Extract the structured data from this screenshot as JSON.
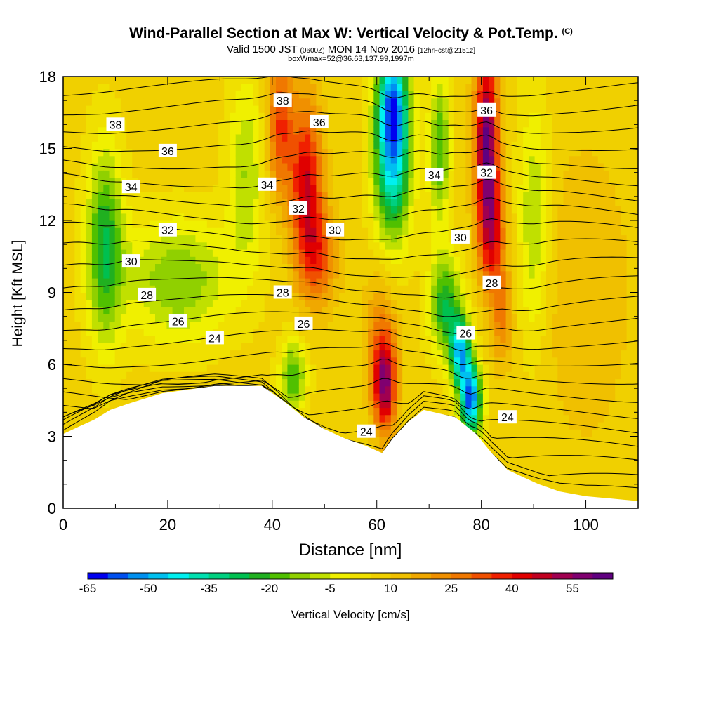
{
  "header": {
    "title": "Wind-Parallel Section at Max W: Vertical Velocity & Pot.Temp.",
    "copyright": "(C)",
    "valid_prefix": "Valid 1500 JST",
    "valid_utc": "(0600Z)",
    "valid_date": "MON 14 Nov 2016",
    "forecast": "[12hrFcst@2151z]",
    "box_info": "boxWmax=52@36.63,137.99,1997m"
  },
  "chart_data": {
    "type": "heatmap",
    "title": "Wind-Parallel Section at Max W: Vertical Velocity & Pot.Temp.",
    "xlabel": "Distance [nm]",
    "ylabel": "Height [Kft MSL]",
    "xlim": [
      0,
      110
    ],
    "ylim": [
      0,
      18
    ],
    "x_ticks": [
      "0",
      "20",
      "40",
      "60",
      "80",
      "100"
    ],
    "y_ticks": [
      "0",
      "3",
      "6",
      "9",
      "12",
      "15",
      "18"
    ],
    "colorbar": {
      "label": "Vertical Velocity [cm/s]",
      "tick_labels": [
        "-65",
        "-50",
        "-35",
        "-20",
        "-5",
        "10",
        "25",
        "40",
        "55"
      ],
      "colors": [
        "#0000f0",
        "#0050f0",
        "#0090f0",
        "#00c0f0",
        "#00f0f0",
        "#00e0b0",
        "#00d080",
        "#00c050",
        "#20b020",
        "#50c000",
        "#90d000",
        "#c0e000",
        "#f0f000",
        "#f0e000",
        "#f0d000",
        "#f0c000",
        "#f0a800",
        "#f09000",
        "#f07800",
        "#f05000",
        "#f02000",
        "#e00000",
        "#c00020",
        "#a00050",
        "#800070",
        "#600080"
      ],
      "min": -65,
      "step": 5
    },
    "terrain_kft": [
      [
        0,
        3.1
      ],
      [
        3,
        3.4
      ],
      [
        6,
        3.7
      ],
      [
        9,
        4.1
      ],
      [
        13,
        4.4
      ],
      [
        19,
        4.8
      ],
      [
        29,
        5.1
      ],
      [
        38,
        5.1
      ],
      [
        42,
        4.5
      ],
      [
        46,
        3.8
      ],
      [
        50,
        3.3
      ],
      [
        54,
        2.9
      ],
      [
        58,
        2.6
      ],
      [
        61,
        2.3
      ],
      [
        63,
        2.9
      ],
      [
        66,
        3.6
      ],
      [
        69,
        4.1
      ],
      [
        75,
        3.8
      ],
      [
        79,
        3.1
      ],
      [
        82,
        2.3
      ],
      [
        85,
        1.6
      ],
      [
        88,
        1.3
      ],
      [
        91,
        1.0
      ],
      [
        95,
        0.7
      ],
      [
        100,
        0.5
      ],
      [
        105,
        0.4
      ],
      [
        110,
        0.3
      ]
    ],
    "vertical_velocity_features_cm_s": [
      {
        "x": 61.5,
        "y": 5.2,
        "value": 55,
        "sx": 2.2,
        "sy": 2.0
      },
      {
        "x": 60.5,
        "y": 7.5,
        "value": 20,
        "sx": 3.0,
        "sy": 2.5
      },
      {
        "x": 46.5,
        "y": 13.5,
        "value": 45,
        "sx": 3.0,
        "sy": 3.5
      },
      {
        "x": 41.5,
        "y": 16.0,
        "value": 35,
        "sx": 2.5,
        "sy": 3.0
      },
      {
        "x": 49.0,
        "y": 10.5,
        "value": 30,
        "sx": 3.5,
        "sy": 2.0
      },
      {
        "x": 81.0,
        "y": 15.5,
        "value": 60,
        "sx": 2.2,
        "sy": 3.5
      },
      {
        "x": 82.0,
        "y": 11.5,
        "value": 40,
        "sx": 2.5,
        "sy": 2.5
      },
      {
        "x": 84.0,
        "y": 8.0,
        "value": 25,
        "sx": 2.0,
        "sy": 2.0
      },
      {
        "x": 63.0,
        "y": 17.0,
        "value": -45,
        "sx": 3.0,
        "sy": 2.5
      },
      {
        "x": 63.0,
        "y": 14.0,
        "value": -35,
        "sx": 3.5,
        "sy": 3.0
      },
      {
        "x": 78.0,
        "y": 4.5,
        "value": -55,
        "sx": 2.0,
        "sy": 1.5
      },
      {
        "x": 76.0,
        "y": 6.5,
        "value": -45,
        "sx": 2.0,
        "sy": 1.5
      },
      {
        "x": 73.0,
        "y": 8.5,
        "value": -25,
        "sx": 3.0,
        "sy": 2.0
      },
      {
        "x": 8.0,
        "y": 11.0,
        "value": -25,
        "sx": 3.5,
        "sy": 4.0
      },
      {
        "x": 22.0,
        "y": 9.5,
        "value": -15,
        "sx": 10.0,
        "sy": 2.5
      },
      {
        "x": 35.0,
        "y": 14.0,
        "value": -10,
        "sx": 3.5,
        "sy": 4.0
      },
      {
        "x": 44.0,
        "y": 5.5,
        "value": -20,
        "sx": 2.5,
        "sy": 1.5
      },
      {
        "x": 72.0,
        "y": 15.0,
        "value": -20,
        "sx": 2.0,
        "sy": 3.0
      },
      {
        "x": 90.0,
        "y": 12.0,
        "value": -10,
        "sx": 3.0,
        "sy": 5.0
      },
      {
        "x": 100.0,
        "y": 9.0,
        "value": 15,
        "sx": 8.0,
        "sy": 6.0
      }
    ],
    "theta_contour_labels": [
      {
        "x": 10,
        "y": 16.0,
        "text": "38"
      },
      {
        "x": 20,
        "y": 14.9,
        "text": "36"
      },
      {
        "x": 13,
        "y": 13.4,
        "text": "34"
      },
      {
        "x": 20,
        "y": 11.6,
        "text": "32"
      },
      {
        "x": 13,
        "y": 10.3,
        "text": "30"
      },
      {
        "x": 16,
        "y": 8.9,
        "text": "28"
      },
      {
        "x": 22,
        "y": 7.8,
        "text": "26"
      },
      {
        "x": 29,
        "y": 7.1,
        "text": "24"
      },
      {
        "x": 42,
        "y": 17.0,
        "text": "38"
      },
      {
        "x": 49,
        "y": 16.1,
        "text": "36"
      },
      {
        "x": 39,
        "y": 13.5,
        "text": "34"
      },
      {
        "x": 45,
        "y": 12.5,
        "text": "32"
      },
      {
        "x": 52,
        "y": 11.6,
        "text": "30"
      },
      {
        "x": 42,
        "y": 9.0,
        "text": "28"
      },
      {
        "x": 46,
        "y": 7.7,
        "text": "26"
      },
      {
        "x": 58,
        "y": 3.2,
        "text": "24"
      },
      {
        "x": 81,
        "y": 16.6,
        "text": "36"
      },
      {
        "x": 71,
        "y": 13.9,
        "text": "34"
      },
      {
        "x": 81,
        "y": 14.0,
        "text": "32"
      },
      {
        "x": 76,
        "y": 11.3,
        "text": "30"
      },
      {
        "x": 82,
        "y": 9.4,
        "text": "28"
      },
      {
        "x": 77,
        "y": 7.3,
        "text": "26"
      },
      {
        "x": 85,
        "y": 3.8,
        "text": "24"
      }
    ]
  }
}
